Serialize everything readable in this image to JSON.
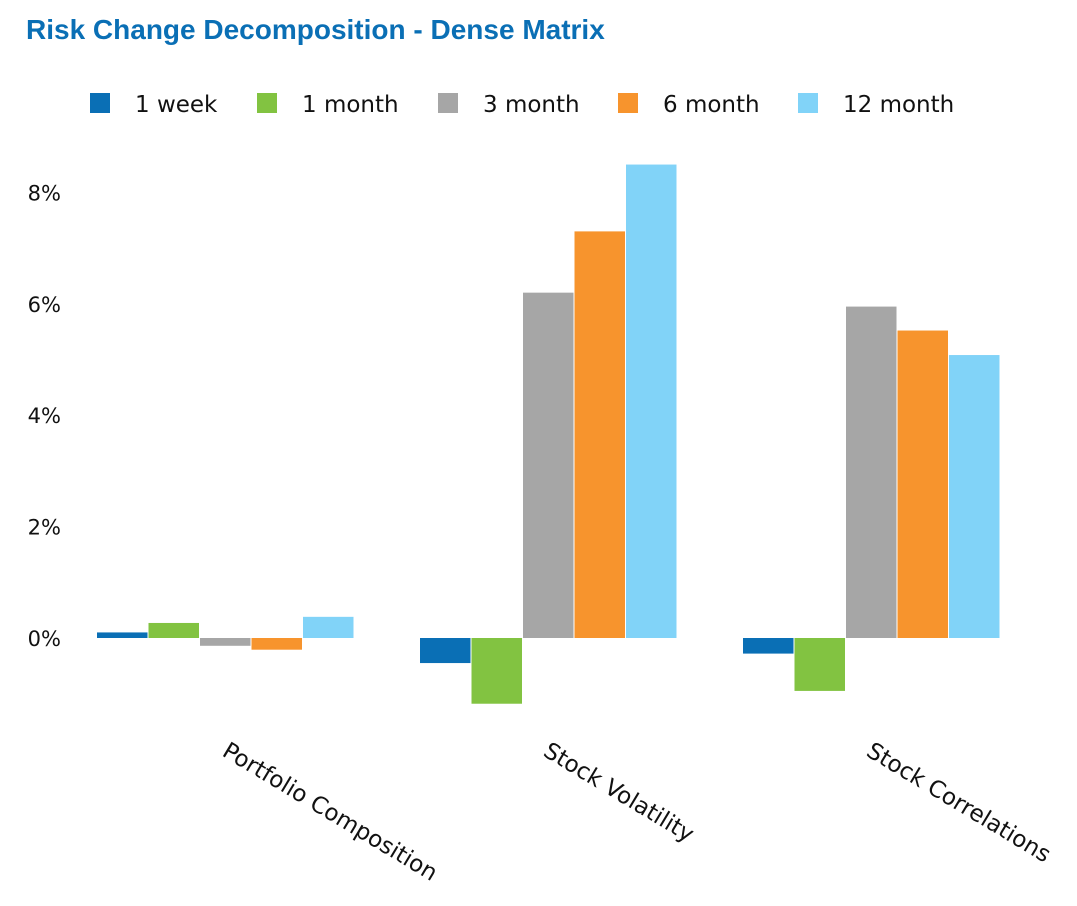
{
  "chart_data": {
    "type": "bar",
    "title": "Risk Change Decomposition - Dense Matrix",
    "xlabel": "",
    "ylabel": "",
    "categories": [
      "Portfolio Composition",
      "Stock Volatility",
      "Stock Correlations"
    ],
    "series": [
      {
        "name": "1 week",
        "color": "#0a6fb5",
        "values": [
          0.1,
          -0.45,
          -0.28
        ]
      },
      {
        "name": "1 month",
        "color": "#82c341",
        "values": [
          0.27,
          -1.18,
          -0.95
        ]
      },
      {
        "name": "3 month",
        "color": "#a6a6a6",
        "values": [
          -0.14,
          6.2,
          5.95
        ]
      },
      {
        "name": "6 month",
        "color": "#f7942d",
        "values": [
          -0.21,
          7.3,
          5.52
        ]
      },
      {
        "name": "12 month",
        "color": "#81d3f8",
        "values": [
          0.38,
          8.5,
          5.08
        ]
      }
    ],
    "ylim": [
      -1.2,
      8.5
    ],
    "yticks": [
      0,
      2,
      4,
      6,
      8
    ],
    "ytick_labels": [
      "0%",
      "2%",
      "4%",
      "6%",
      "8%"
    ],
    "grid": false,
    "legend_position": "top-left"
  }
}
